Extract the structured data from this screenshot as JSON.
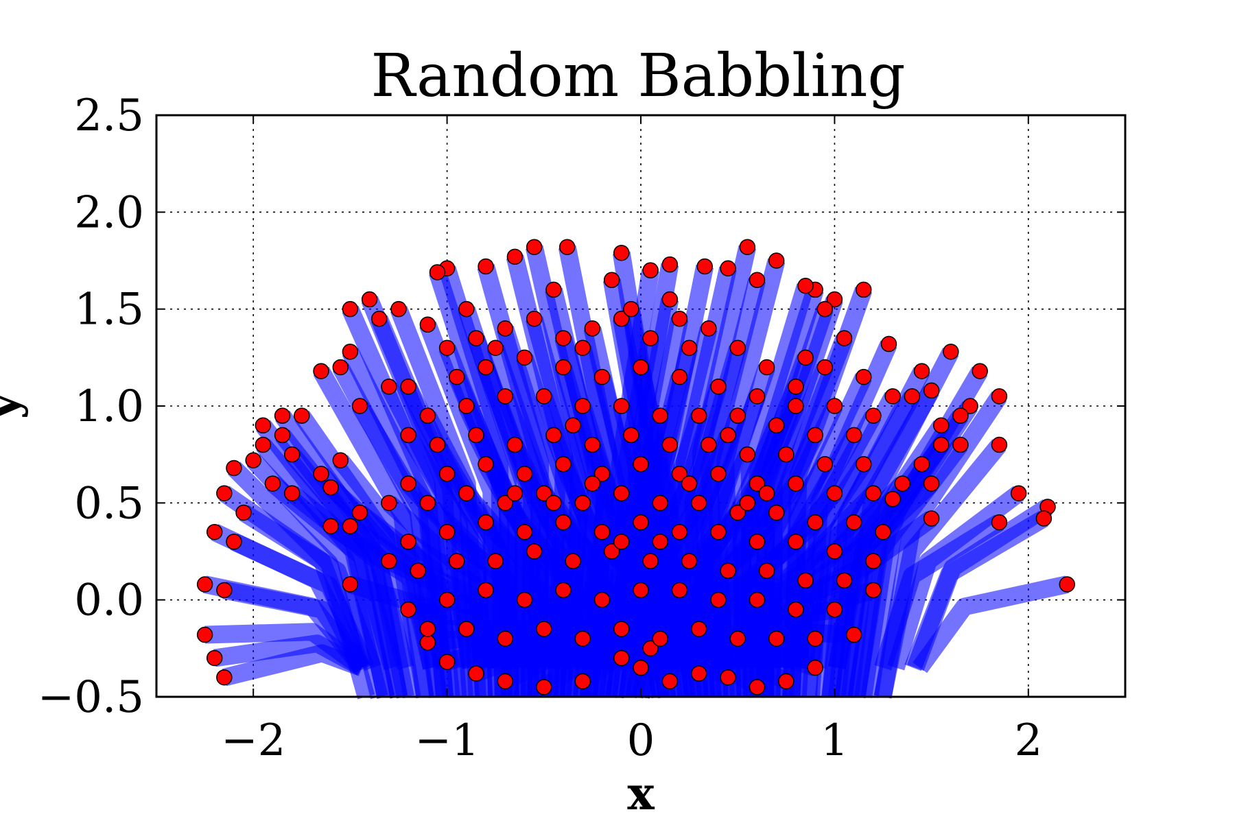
{
  "chart_data": {
    "type": "scatter",
    "title": "Random Babbling",
    "xlabel": "x",
    "ylabel": "y",
    "xlim": [
      -2.5,
      2.5
    ],
    "ylim": [
      -0.5,
      2.5
    ],
    "xticks": [
      -2,
      -1,
      0,
      1,
      2
    ],
    "yticks": [
      -0.5,
      0.0,
      0.5,
      1.0,
      1.5,
      2.0,
      2.5
    ],
    "xtick_labels": [
      "−2",
      "−1",
      "0",
      "1",
      "2"
    ],
    "ytick_labels": [
      "−0.5",
      "0.0",
      "0.5",
      "1.0",
      "1.5",
      "2.0",
      "2.5"
    ],
    "grid": true,
    "grid_style": "dotted",
    "point_color": "#ff0000",
    "point_edge_color": "#000000",
    "arm_color": "#0000ff",
    "points": [
      [
        -0.38,
        1.82
      ],
      [
        -0.55,
        1.82
      ],
      [
        0.55,
        1.82
      ],
      [
        -0.1,
        1.79
      ],
      [
        0.7,
        1.75
      ],
      [
        -0.65,
        1.77
      ],
      [
        0.15,
        1.73
      ],
      [
        -0.8,
        1.72
      ],
      [
        -1.0,
        1.71
      ],
      [
        0.33,
        1.72
      ],
      [
        -1.05,
        1.69
      ],
      [
        0.45,
        1.71
      ],
      [
        0.05,
        1.7
      ],
      [
        1.15,
        1.6
      ],
      [
        0.9,
        1.6
      ],
      [
        1.0,
        1.55
      ],
      [
        0.6,
        1.65
      ],
      [
        -0.45,
        1.6
      ],
      [
        -0.15,
        1.65
      ],
      [
        -1.4,
        1.55
      ],
      [
        -1.5,
        1.5
      ],
      [
        -1.25,
        1.5
      ],
      [
        -1.1,
        1.42
      ],
      [
        -1.35,
        1.45
      ],
      [
        -1.5,
        1.28
      ],
      [
        -1.55,
        1.2
      ],
      [
        -1.65,
        1.18
      ],
      [
        -1.3,
        1.1
      ],
      [
        -1.45,
        1.0
      ],
      [
        -1.75,
        0.95
      ],
      [
        -1.85,
        0.95
      ],
      [
        -1.95,
        0.9
      ],
      [
        -1.85,
        0.85
      ],
      [
        -1.95,
        0.8
      ],
      [
        -2.0,
        0.72
      ],
      [
        -1.8,
        0.75
      ],
      [
        -2.1,
        0.68
      ],
      [
        -2.15,
        0.55
      ],
      [
        -1.9,
        0.6
      ],
      [
        -1.8,
        0.55
      ],
      [
        -2.05,
        0.45
      ],
      [
        -2.2,
        0.35
      ],
      [
        -2.1,
        0.3
      ],
      [
        -1.65,
        0.65
      ],
      [
        -1.55,
        0.72
      ],
      [
        -1.6,
        0.58
      ],
      [
        -1.6,
        0.38
      ],
      [
        -1.5,
        0.38
      ],
      [
        -1.45,
        0.45
      ],
      [
        -2.25,
        0.08
      ],
      [
        -2.15,
        0.05
      ],
      [
        -2.25,
        -0.18
      ],
      [
        -2.2,
        -0.3
      ],
      [
        -2.15,
        -0.4
      ],
      [
        -1.5,
        0.08
      ],
      [
        1.28,
        1.32
      ],
      [
        1.45,
        1.18
      ],
      [
        1.6,
        1.28
      ],
      [
        1.75,
        1.18
      ],
      [
        1.5,
        1.08
      ],
      [
        1.4,
        1.05
      ],
      [
        1.3,
        1.05
      ],
      [
        1.7,
        1.0
      ],
      [
        1.85,
        1.05
      ],
      [
        1.65,
        0.95
      ],
      [
        1.55,
        0.9
      ],
      [
        1.65,
        0.8
      ],
      [
        1.55,
        0.8
      ],
      [
        1.85,
        0.8
      ],
      [
        1.45,
        0.7
      ],
      [
        1.35,
        0.6
      ],
      [
        1.5,
        0.6
      ],
      [
        1.3,
        0.52
      ],
      [
        1.95,
        0.55
      ],
      [
        2.1,
        0.48
      ],
      [
        2.08,
        0.42
      ],
      [
        1.85,
        0.4
      ],
      [
        1.5,
        0.42
      ],
      [
        2.2,
        0.08
      ],
      [
        1.1,
        -0.18
      ],
      [
        0.9,
        -0.35
      ],
      [
        0.75,
        -0.42
      ],
      [
        0.6,
        -0.45
      ],
      [
        0.45,
        -0.4
      ],
      [
        0.3,
        -0.38
      ],
      [
        -0.3,
        -0.42
      ],
      [
        -0.5,
        -0.45
      ],
      [
        -0.7,
        -0.42
      ],
      [
        -0.85,
        -0.38
      ],
      [
        -1.0,
        -0.32
      ],
      [
        -1.1,
        -0.22
      ],
      [
        0.0,
        -0.35
      ],
      [
        0.15,
        -0.42
      ],
      [
        -0.1,
        -0.3
      ],
      [
        0.05,
        -0.25
      ],
      [
        0.85,
        1.62
      ],
      [
        1.05,
        1.35
      ],
      [
        0.95,
        1.2
      ],
      [
        0.8,
        1.1
      ],
      [
        0.65,
        1.2
      ],
      [
        0.5,
        1.3
      ],
      [
        0.35,
        1.4
      ],
      [
        0.2,
        1.45
      ],
      [
        0.05,
        1.35
      ],
      [
        -0.1,
        1.45
      ],
      [
        -0.25,
        1.4
      ],
      [
        -0.4,
        1.35
      ],
      [
        -0.55,
        1.45
      ],
      [
        -0.7,
        1.4
      ],
      [
        -0.85,
        1.35
      ],
      [
        -1.0,
        1.3
      ],
      [
        -0.95,
        1.15
      ],
      [
        -0.8,
        1.2
      ],
      [
        -0.6,
        1.25
      ],
      [
        -0.4,
        1.2
      ],
      [
        -0.2,
        1.15
      ],
      [
        0.0,
        1.2
      ],
      [
        0.2,
        1.15
      ],
      [
        0.4,
        1.1
      ],
      [
        0.6,
        1.05
      ],
      [
        0.8,
        1.0
      ],
      [
        1.0,
        1.0
      ],
      [
        1.2,
        0.95
      ],
      [
        1.1,
        0.85
      ],
      [
        0.9,
        0.85
      ],
      [
        0.7,
        0.9
      ],
      [
        0.5,
        0.95
      ],
      [
        0.3,
        0.95
      ],
      [
        0.1,
        0.95
      ],
      [
        -0.1,
        1.0
      ],
      [
        -0.3,
        1.0
      ],
      [
        -0.5,
        1.05
      ],
      [
        -0.7,
        1.05
      ],
      [
        -0.9,
        1.0
      ],
      [
        -1.1,
        0.95
      ],
      [
        -1.2,
        0.85
      ],
      [
        -1.05,
        0.8
      ],
      [
        -0.85,
        0.85
      ],
      [
        -0.65,
        0.8
      ],
      [
        -0.45,
        0.85
      ],
      [
        -0.25,
        0.8
      ],
      [
        -0.05,
        0.85
      ],
      [
        0.15,
        0.8
      ],
      [
        0.35,
        0.8
      ],
      [
        0.55,
        0.75
      ],
      [
        0.75,
        0.75
      ],
      [
        0.95,
        0.7
      ],
      [
        1.15,
        0.7
      ],
      [
        1.2,
        0.55
      ],
      [
        1.0,
        0.55
      ],
      [
        0.8,
        0.6
      ],
      [
        0.6,
        0.6
      ],
      [
        0.4,
        0.65
      ],
      [
        0.2,
        0.65
      ],
      [
        0.0,
        0.7
      ],
      [
        -0.2,
        0.65
      ],
      [
        -0.4,
        0.7
      ],
      [
        -0.6,
        0.65
      ],
      [
        -0.8,
        0.7
      ],
      [
        -1.0,
        0.65
      ],
      [
        -1.2,
        0.6
      ],
      [
        -1.3,
        0.5
      ],
      [
        -1.1,
        0.5
      ],
      [
        -0.9,
        0.55
      ],
      [
        -0.7,
        0.5
      ],
      [
        -0.5,
        0.55
      ],
      [
        -0.3,
        0.5
      ],
      [
        -0.1,
        0.55
      ],
      [
        0.1,
        0.5
      ],
      [
        0.3,
        0.5
      ],
      [
        0.5,
        0.45
      ],
      [
        0.7,
        0.45
      ],
      [
        0.9,
        0.4
      ],
      [
        1.1,
        0.4
      ],
      [
        1.25,
        0.35
      ],
      [
        1.2,
        0.2
      ],
      [
        1.0,
        0.25
      ],
      [
        0.8,
        0.3
      ],
      [
        0.6,
        0.3
      ],
      [
        0.4,
        0.35
      ],
      [
        0.2,
        0.35
      ],
      [
        0.0,
        0.4
      ],
      [
        -0.2,
        0.35
      ],
      [
        -0.4,
        0.4
      ],
      [
        -0.6,
        0.35
      ],
      [
        -0.8,
        0.4
      ],
      [
        -1.0,
        0.35
      ],
      [
        -1.2,
        0.3
      ],
      [
        -1.3,
        0.2
      ],
      [
        -1.15,
        0.15
      ],
      [
        -0.95,
        0.2
      ],
      [
        -0.75,
        0.2
      ],
      [
        -0.55,
        0.25
      ],
      [
        -0.35,
        0.2
      ],
      [
        -0.15,
        0.25
      ],
      [
        0.05,
        0.2
      ],
      [
        0.25,
        0.2
      ],
      [
        0.45,
        0.15
      ],
      [
        0.65,
        0.15
      ],
      [
        0.85,
        0.1
      ],
      [
        1.05,
        0.1
      ],
      [
        1.2,
        0.05
      ],
      [
        1.0,
        -0.05
      ],
      [
        0.8,
        -0.05
      ],
      [
        0.6,
        0.0
      ],
      [
        0.4,
        0.0
      ],
      [
        0.2,
        0.05
      ],
      [
        0.0,
        0.05
      ],
      [
        -0.2,
        0.0
      ],
      [
        -0.4,
        0.05
      ],
      [
        -0.6,
        0.0
      ],
      [
        -0.8,
        0.05
      ],
      [
        -1.0,
        0.0
      ],
      [
        -1.2,
        -0.05
      ],
      [
        -1.1,
        -0.15
      ],
      [
        -0.9,
        -0.15
      ],
      [
        -0.7,
        -0.2
      ],
      [
        -0.5,
        -0.15
      ],
      [
        -0.3,
        -0.2
      ],
      [
        -0.1,
        -0.15
      ],
      [
        0.1,
        -0.2
      ],
      [
        0.3,
        -0.15
      ],
      [
        0.5,
        -0.2
      ],
      [
        0.7,
        -0.2
      ],
      [
        0.9,
        -0.2
      ],
      [
        0.55,
        0.5
      ],
      [
        -0.45,
        0.5
      ],
      [
        0.25,
        0.6
      ],
      [
        -0.25,
        0.6
      ],
      [
        0.1,
        0.3
      ],
      [
        -0.1,
        0.3
      ],
      [
        0.65,
        0.55
      ],
      [
        -0.65,
        0.55
      ],
      [
        0.45,
        0.85
      ],
      [
        -0.35,
        0.9
      ],
      [
        0.85,
        1.25
      ],
      [
        -0.75,
        1.3
      ],
      [
        0.25,
        1.3
      ],
      [
        -0.3,
        1.3
      ],
      [
        1.15,
        1.15
      ],
      [
        -1.2,
        1.1
      ],
      [
        0.95,
        1.5
      ],
      [
        -0.9,
        1.5
      ],
      [
        0.15,
        1.55
      ],
      [
        -0.05,
        1.5
      ]
    ]
  }
}
